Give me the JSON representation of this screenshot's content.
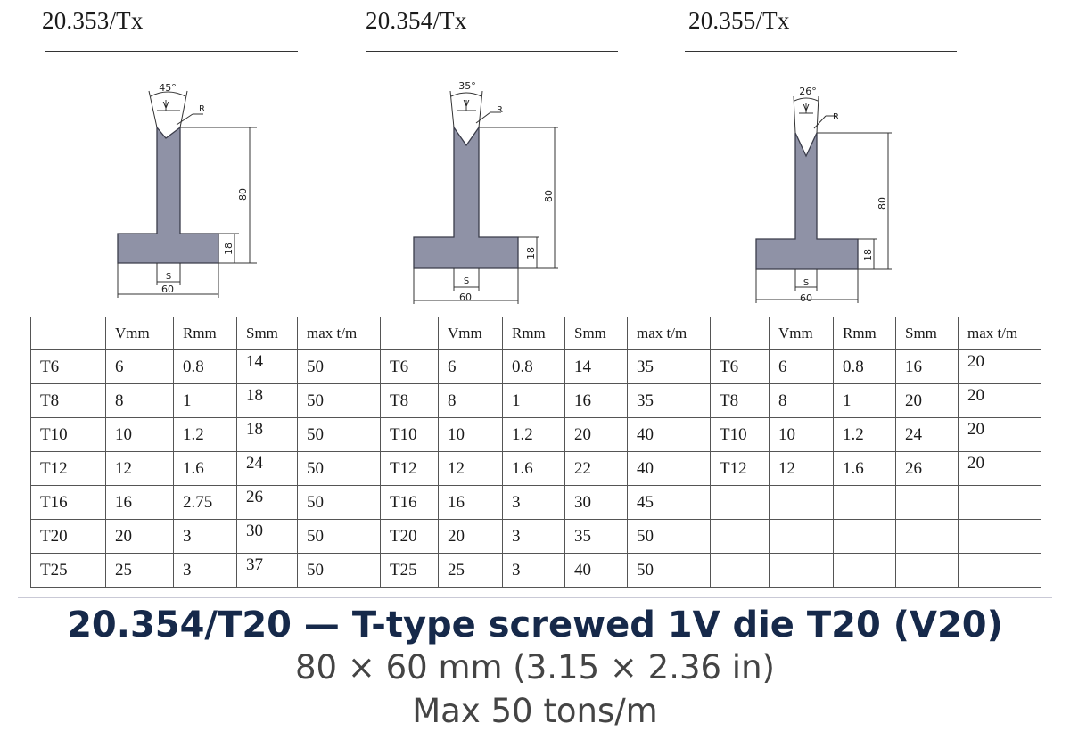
{
  "models": [
    {
      "code": "20.353/Tx",
      "angle": "45°"
    },
    {
      "code": "20.354/Tx",
      "angle": "35°"
    },
    {
      "code": "20.355/Tx",
      "angle": "26°"
    }
  ],
  "drawing_labels": {
    "v": "V",
    "r": "R",
    "s": "S",
    "height": "80",
    "base_height": "18",
    "width": "60"
  },
  "table": {
    "headers": [
      "",
      "Vmm",
      "Rmm",
      "Smm",
      "max t/m",
      "",
      "Vmm",
      "Rmm",
      "Smm",
      "max t/m",
      "",
      "Vmm",
      "Rmm",
      "Smm",
      "max t/m"
    ],
    "rows": [
      [
        "T6",
        "6",
        "0.8",
        "14",
        "50",
        "T6",
        "6",
        "0.8",
        "14",
        "35",
        "T6",
        "6",
        "0.8",
        "16",
        "20"
      ],
      [
        "T8",
        "8",
        "1",
        "18",
        "50",
        "T8",
        "8",
        "1",
        "16",
        "35",
        "T8",
        "8",
        "1",
        "20",
        "20"
      ],
      [
        "T10",
        "10",
        "1.2",
        "18",
        "50",
        "T10",
        "10",
        "1.2",
        "20",
        "40",
        "T10",
        "10",
        "1.2",
        "24",
        "20"
      ],
      [
        "T12",
        "12",
        "1.6",
        "24",
        "50",
        "T12",
        "12",
        "1.6",
        "22",
        "40",
        "T12",
        "12",
        "1.6",
        "26",
        "20"
      ],
      [
        "T16",
        "16",
        "2.75",
        "26",
        "50",
        "T16",
        "16",
        "3",
        "30",
        "45",
        "",
        "",
        "",
        "",
        ""
      ],
      [
        "T20",
        "20",
        "3",
        "30",
        "50",
        "T20",
        "20",
        "3",
        "35",
        "50",
        "",
        "",
        "",
        "",
        ""
      ],
      [
        "T25",
        "25",
        "3",
        "37",
        "50",
        "T25",
        "25",
        "3",
        "40",
        "50",
        "",
        "",
        "",
        "",
        ""
      ]
    ]
  },
  "caption": {
    "title": "20.354/T20  —  T-type screwed 1V die T20 (V20)",
    "dimensions": "80 × 60 mm (3.15 × 2.36 in)",
    "load": "Max 50 tons/m"
  },
  "colors": {
    "die_fill": "#8f92a6",
    "die_stroke": "#3a3c4a",
    "caption_title": "#16294a",
    "caption_text": "#444444"
  }
}
